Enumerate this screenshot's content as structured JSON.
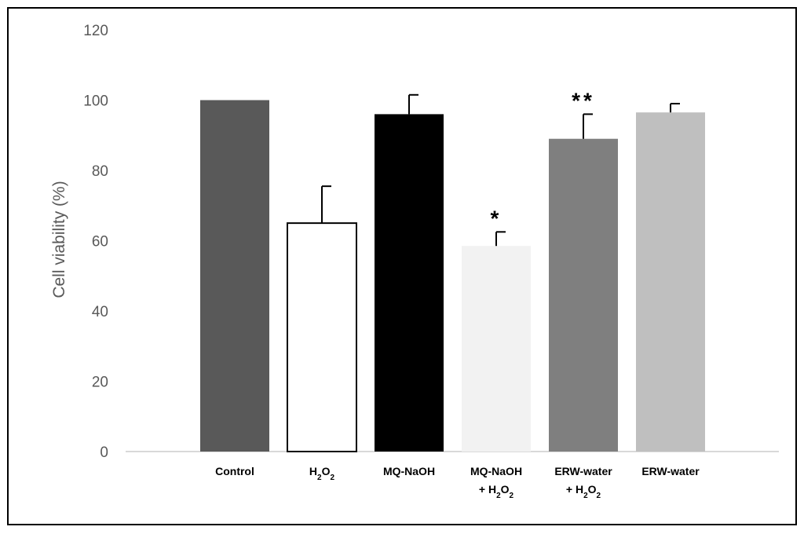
{
  "chart_data": {
    "type": "bar",
    "ylabel": "Cell viability (%)",
    "xlabel": "",
    "ylim": [
      0,
      120
    ],
    "yticks": [
      0,
      20,
      40,
      60,
      80,
      100,
      120
    ],
    "grid": false,
    "legend": "none",
    "categories": [
      {
        "line1": "Control",
        "line2": null
      },
      {
        "line1": "H2O2",
        "line2": null
      },
      {
        "line1": "MQ-NaOH",
        "line2": null
      },
      {
        "line1": "MQ-NaOH",
        "line2": "+ H2O2"
      },
      {
        "line1": "ERW-water",
        "line2": "+ H2O2"
      },
      {
        "line1": "ERW-water",
        "line2": null
      }
    ],
    "values": [
      100,
      65,
      96,
      58.5,
      89,
      96.5
    ],
    "error_upper": [
      0,
      10.5,
      5.5,
      4,
      7,
      2.5
    ],
    "significance": [
      "",
      "",
      "",
      "*",
      "**",
      ""
    ],
    "colors": {
      "fills": [
        "#595959",
        "#ffffff",
        "#000000",
        "#f2f2f2",
        "#7f7f7f",
        "#bfbfbf"
      ],
      "strokes": [
        "none",
        "#000000",
        "none",
        "none",
        "none",
        "none"
      ],
      "axis": "#d9d9d9",
      "text": "#595959",
      "frame": "#000000"
    }
  }
}
